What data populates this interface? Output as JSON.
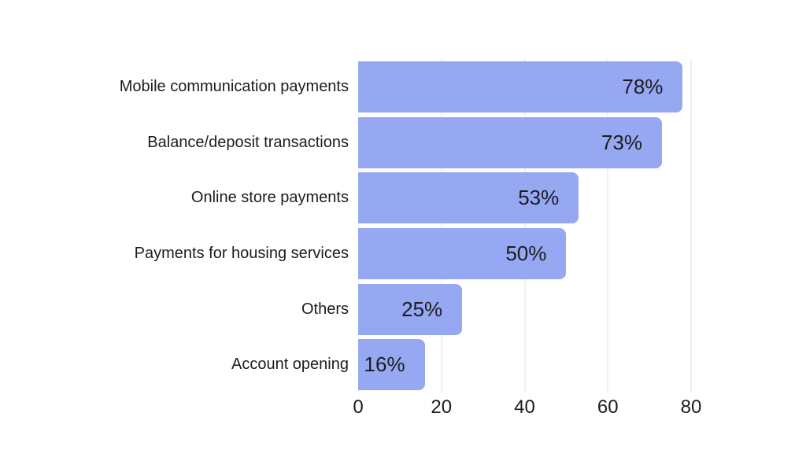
{
  "chart_data": {
    "type": "bar",
    "orientation": "horizontal",
    "title": "",
    "categories": [
      "Mobile communication payments",
      "Balance/deposit transactions",
      "Online store payments",
      "Payments for housing services",
      "Others",
      "Account opening"
    ],
    "values": [
      78,
      73,
      53,
      50,
      25,
      16
    ],
    "value_labels": [
      "78%",
      "73%",
      "53%",
      "50%",
      "25%",
      "16%"
    ],
    "xlabel": "",
    "ylabel": "",
    "xlim": [
      0,
      80
    ],
    "x_ticks": [
      0,
      20,
      40,
      60,
      80
    ],
    "grid": true,
    "legend": false,
    "colors": {
      "bar": "#97A8F2",
      "text": "#1B1C20",
      "grid": "#E2E2E6",
      "background": "#FFFFFF"
    }
  }
}
